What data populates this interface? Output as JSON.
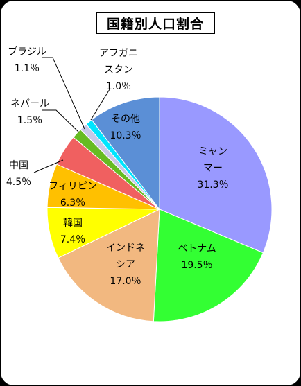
{
  "chart_data": {
    "type": "pie",
    "title": "国籍別人口割合",
    "slices": [
      {
        "name_lines": [
          "ミャン",
          "マー"
        ],
        "value": 31.3,
        "label": "31.3％",
        "color": "#9999FF",
        "edge": "#4D4DD9"
      },
      {
        "name_lines": [
          "ベトナム"
        ],
        "value": 19.5,
        "label": "19.5％",
        "color": "#33FF33",
        "edge": "#1FA61F"
      },
      {
        "name_lines": [
          "インドネ",
          "シア"
        ],
        "value": 17.0,
        "label": "17.0％",
        "color": "#F2B880",
        "edge": "#B87D45"
      },
      {
        "name_lines": [
          "韓国"
        ],
        "value": 7.4,
        "label": "7.4％",
        "color": "#FFFF00",
        "edge": "#B8B800"
      },
      {
        "name_lines": [
          "フィリピン"
        ],
        "value": 6.3,
        "label": "6.3％",
        "color": "#FFC000",
        "edge": "#B88A00"
      },
      {
        "name_lines": [
          "中国"
        ],
        "value": 4.5,
        "label": "4.5％",
        "color": "#F06060",
        "edge": "#A83A3A"
      },
      {
        "name_lines": [
          "ネパール"
        ],
        "value": 1.5,
        "label": "1.5％",
        "color": "#66BB22",
        "edge": "#3F7A12"
      },
      {
        "name_lines": [
          "ブラジル"
        ],
        "value": 1.1,
        "label": "1.1％",
        "color": "#C8C8E8",
        "edge": "#8888B0"
      },
      {
        "name_lines": [
          "アフガニ",
          "スタン"
        ],
        "value": 1.0,
        "label": "1.0％",
        "color": "#00E5FF",
        "edge": "#0099B0"
      },
      {
        "name_lines": [
          "その他"
        ],
        "value": 10.3,
        "label": "10.3％",
        "color": "#5B8FD6",
        "edge": "#2F5C99"
      }
    ]
  }
}
